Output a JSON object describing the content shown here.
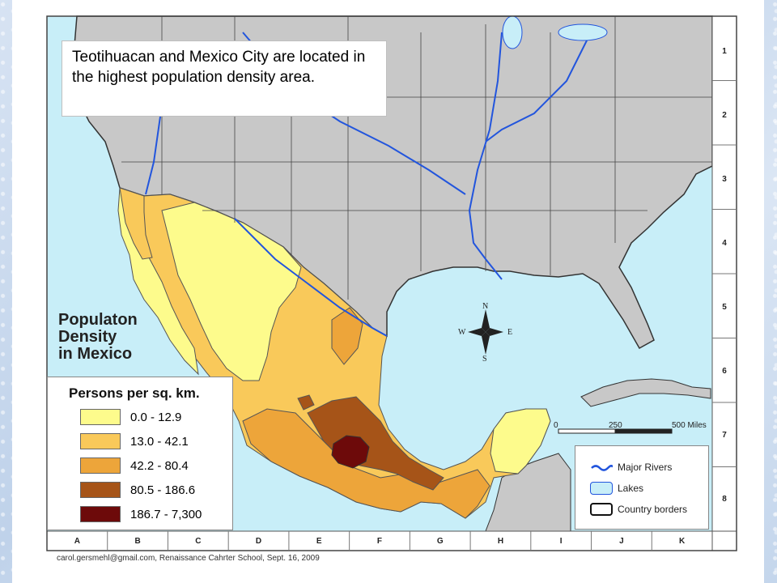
{
  "callout": "Teotihuacan and Mexico City are located in the highest population density area.",
  "map_title": [
    "Populaton",
    "Density",
    "in Mexico"
  ],
  "legend": {
    "title": "Persons per sq. km.",
    "classes": [
      {
        "label": "0.0 - 12.9",
        "color": "#fdfb8c"
      },
      {
        "label": "13.0 - 42.1",
        "color": "#f9c95a"
      },
      {
        "label": "42.2 - 80.4",
        "color": "#eda53a"
      },
      {
        "label": "80.5 - 186.6",
        "color": "#a65418"
      },
      {
        "label": "186.7 - 7,300",
        "color": "#6d0a0a"
      }
    ]
  },
  "map_key": {
    "rivers": "Major Rivers",
    "lakes": "Lakes",
    "borders": "Country borders"
  },
  "compass": {
    "n": "N",
    "s": "S",
    "e": "E",
    "w": "W"
  },
  "scale": {
    "zero": "0",
    "mid": "250",
    "end": "500 Miles"
  },
  "grid_rows": [
    "1",
    "2",
    "3",
    "4",
    "5",
    "6",
    "7",
    "8"
  ],
  "grid_cols": [
    "A",
    "B",
    "C",
    "D",
    "E",
    "F",
    "G",
    "H",
    "I",
    "J",
    "K"
  ],
  "credit": "carol.gersmehl@gmail.com, Renaissance Cahrter School, Sept. 16, 2009",
  "colors": {
    "water": "#c8eef8",
    "land": "#c8c8c8",
    "river": "#2255dd"
  }
}
